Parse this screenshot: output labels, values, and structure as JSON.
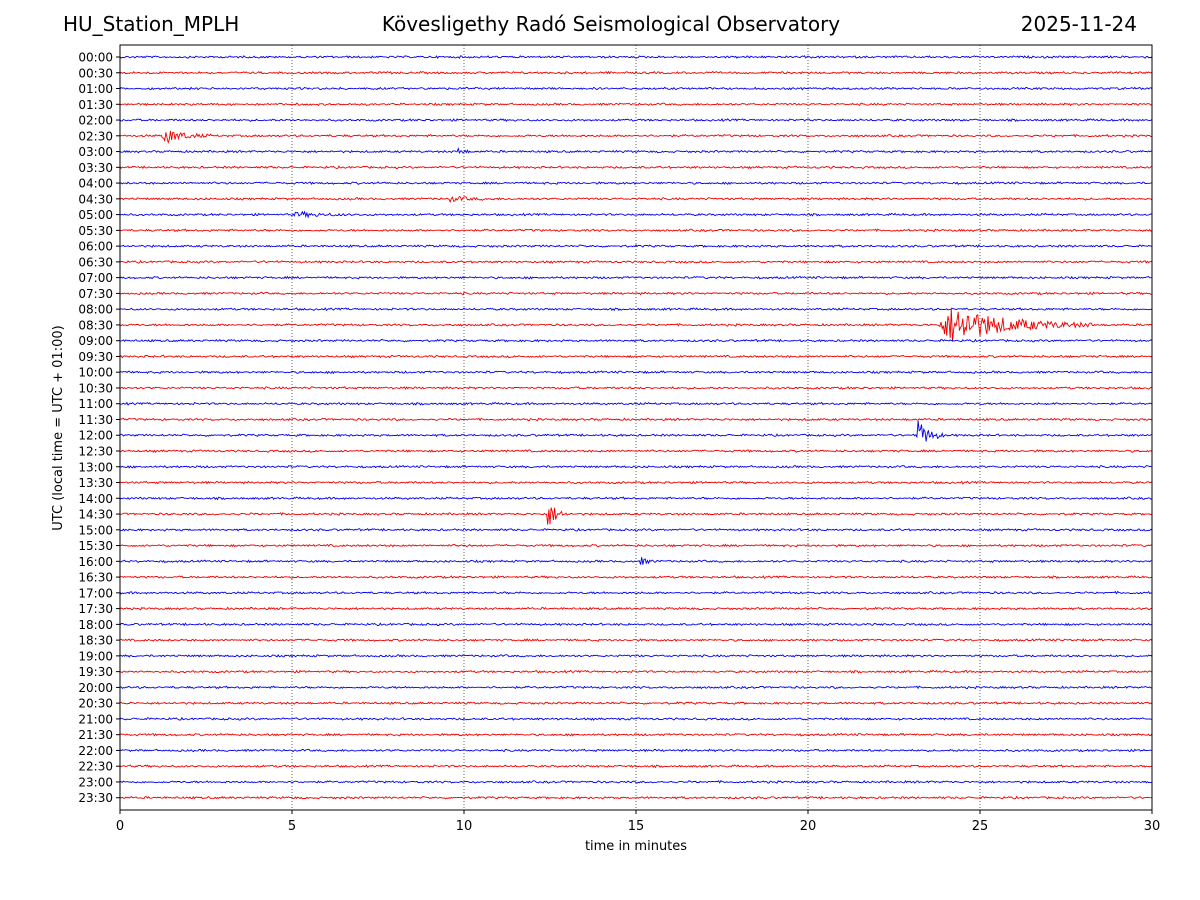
{
  "header": {
    "station": "HU_Station_MPLH",
    "observatory": "Kövesligethy Radó Seismological Observatory",
    "date": "2025-11-24"
  },
  "chart_data": {
    "type": "line",
    "title": "Kövesligethy Radó Seismological Observatory",
    "xlabel": "time in minutes",
    "ylabel": "UTC (local time = UTC + 01:00)",
    "xlim": [
      0,
      30
    ],
    "xticks": [
      0,
      5,
      10,
      15,
      20,
      25,
      30
    ],
    "grid": "vertical dotted at 5-minute intervals",
    "row_labels": [
      "00:00",
      "00:30",
      "01:00",
      "01:30",
      "02:00",
      "02:30",
      "03:00",
      "03:30",
      "04:00",
      "04:30",
      "05:00",
      "05:30",
      "06:00",
      "06:30",
      "07:00",
      "07:30",
      "08:00",
      "08:30",
      "09:00",
      "09:30",
      "10:00",
      "10:30",
      "11:00",
      "11:30",
      "12:00",
      "12:30",
      "13:00",
      "13:30",
      "14:00",
      "14:30",
      "15:00",
      "15:30",
      "16:00",
      "16:30",
      "17:00",
      "17:30",
      "18:00",
      "18:30",
      "19:00",
      "19:30",
      "20:00",
      "20:30",
      "21:00",
      "21:30",
      "22:00",
      "22:30",
      "23:00",
      "23:30"
    ],
    "trace_colors": [
      "#0000ee",
      "#ee0000"
    ],
    "noise_amplitude": 0.9,
    "events": [
      {
        "row": "02:30",
        "start_min": 1.2,
        "duration_min": 1.5,
        "amplitude": 9
      },
      {
        "row": "03:00",
        "start_min": 9.8,
        "duration_min": 0.4,
        "amplitude": 5
      },
      {
        "row": "08:30",
        "start_min": 23.8,
        "duration_min": 4.5,
        "amplitude": 24
      },
      {
        "row": "12:00",
        "start_min": 23.1,
        "duration_min": 0.9,
        "amplitude": 20
      },
      {
        "row": "14:30",
        "start_min": 12.4,
        "duration_min": 0.6,
        "amplitude": 20
      },
      {
        "row": "16:00",
        "start_min": 15.1,
        "duration_min": 0.5,
        "amplitude": 5
      },
      {
        "row": "05:00",
        "start_min": 5.0,
        "duration_min": 2.0,
        "amplitude": 3
      },
      {
        "row": "04:30",
        "start_min": 9.5,
        "duration_min": 1.5,
        "amplitude": 3
      }
    ]
  }
}
